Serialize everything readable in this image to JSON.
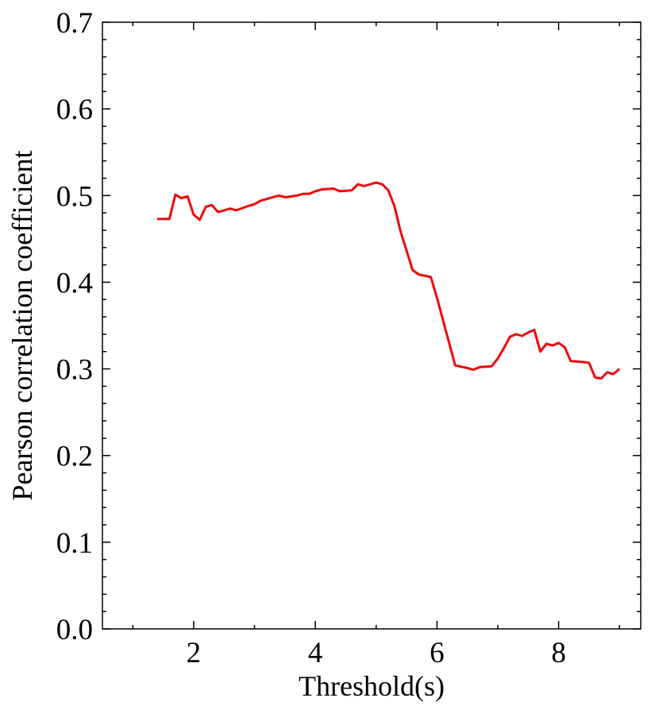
{
  "chart_data": {
    "type": "line",
    "x_label": "Threshold(s)",
    "y_label": "Pearson correlation coefficient",
    "x": [
      1.4,
      1.6,
      1.7,
      1.8,
      1.9,
      2.0,
      2.1,
      2.2,
      2.3,
      2.4,
      2.6,
      2.7,
      2.9,
      3.0,
      3.1,
      3.3,
      3.4,
      3.5,
      3.7,
      3.8,
      3.9,
      4.0,
      4.1,
      4.3,
      4.4,
      4.6,
      4.7,
      4.8,
      5.0,
      5.1,
      5.2,
      5.3,
      5.4,
      5.6,
      5.7,
      5.9,
      6.0,
      6.3,
      6.5,
      6.6,
      6.7,
      6.9,
      7.0,
      7.1,
      7.2,
      7.3,
      7.4,
      7.5,
      7.6,
      7.7,
      7.8,
      7.9,
      8.0,
      8.1,
      8.2,
      8.4,
      8.5,
      8.6,
      8.7,
      8.8,
      8.9,
      9.0
    ],
    "series": [
      {
        "color": "#ee0a0a",
        "values": [
          0.473,
          0.473,
          0.501,
          0.497,
          0.499,
          0.478,
          0.472,
          0.487,
          0.489,
          0.481,
          0.485,
          0.483,
          0.488,
          0.49,
          0.494,
          0.498,
          0.5,
          0.498,
          0.5,
          0.502,
          0.502,
          0.505,
          0.507,
          0.508,
          0.505,
          0.506,
          0.513,
          0.511,
          0.515,
          0.513,
          0.506,
          0.488,
          0.459,
          0.414,
          0.409,
          0.406,
          0.382,
          0.304,
          0.301,
          0.299,
          0.302,
          0.303,
          0.312,
          0.324,
          0.337,
          0.34,
          0.338,
          0.342,
          0.345,
          0.32,
          0.329,
          0.327,
          0.33,
          0.325,
          0.309,
          0.308,
          0.307,
          0.29,
          0.289,
          0.296,
          0.294,
          0.3
        ]
      }
    ],
    "xlim": [
      0.5,
      9.35
    ],
    "ylim": [
      0,
      0.7
    ],
    "xticks": [
      2,
      4,
      6,
      8
    ],
    "yticks": [
      {
        "value": 0,
        "label": "0.0"
      },
      0.1,
      0.2,
      0.3,
      0.4,
      0.5,
      0.6,
      0.7
    ],
    "xminorticks": [
      1,
      3,
      5,
      7,
      9
    ],
    "yminorticks": [
      0.02,
      0.04,
      0.06,
      0.08,
      0.12,
      0.14,
      0.16,
      0.18,
      0.22,
      0.24,
      0.26,
      0.28,
      0.32,
      0.34,
      0.36,
      0.38,
      0.42,
      0.44,
      0.46,
      0.48,
      0.52,
      0.54,
      0.56,
      0.58,
      0.62,
      0.64,
      0.66,
      0.68
    ]
  }
}
